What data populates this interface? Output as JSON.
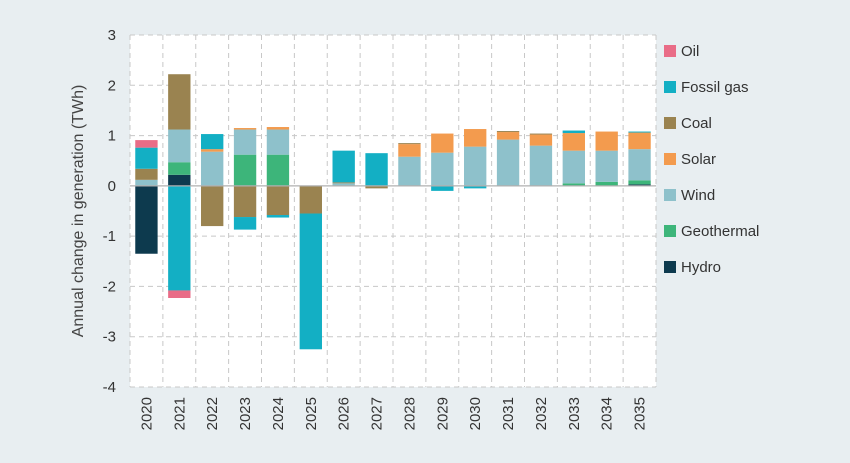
{
  "chart_data": {
    "type": "bar",
    "stacked": true,
    "title": "",
    "xlabel": "",
    "ylabel": "Annual change in generation (TWh)",
    "ylim": [
      -4,
      3
    ],
    "yticks": [
      -4,
      -3,
      -2,
      -1,
      0,
      1,
      2,
      3
    ],
    "grid": true,
    "legend_position": "right",
    "categories": [
      "2020",
      "2021",
      "2022",
      "2023",
      "2024",
      "2025",
      "2026",
      "2027",
      "2028",
      "2029",
      "2030",
      "2031",
      "2032",
      "2033",
      "2034",
      "2035"
    ],
    "series": [
      {
        "name": "Hydro",
        "color": "#0d3a4e",
        "values": [
          -1.35,
          0.22,
          0,
          0,
          0,
          0,
          0,
          0,
          0,
          0,
          0,
          0,
          0,
          0,
          0,
          0.03
        ]
      },
      {
        "name": "Geothermal",
        "color": "#3db57a",
        "values": [
          0,
          0.25,
          0,
          0.62,
          0.62,
          0,
          0,
          0,
          0,
          0,
          0,
          0,
          0,
          0.05,
          0.08,
          0.08
        ]
      },
      {
        "name": "Wind",
        "color": "#8ec1cb",
        "values": [
          0.12,
          0.65,
          0.68,
          0.5,
          0.5,
          0,
          0.05,
          0,
          0.58,
          0.66,
          0.78,
          0.92,
          0.8,
          0.65,
          0.62,
          0.62
        ]
      },
      {
        "name": "Solar",
        "color": "#f39b4e",
        "values": [
          0,
          0,
          0.05,
          0.03,
          0.05,
          0,
          0,
          0,
          0.25,
          0.38,
          0.35,
          0.15,
          0.22,
          0.35,
          0.38,
          0.33
        ]
      },
      {
        "name": "Coal",
        "color": "#9a8350",
        "values": [
          0.22,
          1.1,
          -0.8,
          -0.62,
          -0.58,
          -0.55,
          0.02,
          -0.05,
          0.02,
          0,
          0,
          0.02,
          0.02,
          0,
          0,
          0
        ]
      },
      {
        "name": "Fossil gas",
        "color": "#13afc4",
        "values": [
          0.42,
          -2.08,
          0.3,
          -0.25,
          -0.05,
          -2.7,
          0.63,
          0.65,
          0,
          -0.1,
          -0.05,
          0,
          0,
          0.05,
          0,
          0.02
        ]
      },
      {
        "name": "Oil",
        "color": "#e96c87",
        "values": [
          0.15,
          -0.15,
          0,
          0,
          0,
          0,
          0,
          0,
          0,
          0,
          0,
          0,
          0,
          0,
          0,
          0
        ]
      }
    ],
    "legend_order": [
      "Oil",
      "Fossil gas",
      "Coal",
      "Solar",
      "Wind",
      "Geothermal",
      "Hydro"
    ]
  }
}
